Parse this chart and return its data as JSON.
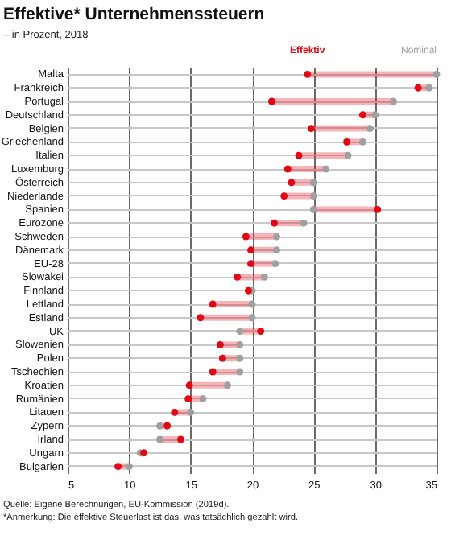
{
  "chart_data": {
    "type": "scatter",
    "title": "Effektive* Unternehmenssteuern",
    "subtitle": "– in Prozent, 2018",
    "categories": [
      "Malta",
      "Frankreich",
      "Portugal",
      "Deutschland",
      "Belgien",
      "Griechenland",
      "Italien",
      "Luxemburg",
      "Österreich",
      "Niederlande",
      "Spanien",
      "Eurozone",
      "Schweden",
      "Dänemark",
      "EU-28",
      "Slowakei",
      "Finnland",
      "Lettland",
      "Estland",
      "UK",
      "Slowenien",
      "Polen",
      "Tschechien",
      "Kroatien",
      "Rumänien",
      "Litauen",
      "Zypern",
      "Irland",
      "Ungarn",
      "Bulgarien"
    ],
    "series": [
      {
        "name": "Effektiv",
        "color": "#e30613",
        "values": [
          24.5,
          33.5,
          21.6,
          29.0,
          24.8,
          27.7,
          23.8,
          22.9,
          23.2,
          22.6,
          30.2,
          21.8,
          19.5,
          19.9,
          19.9,
          18.8,
          19.7,
          16.8,
          15.8,
          20.7,
          17.4,
          17.6,
          16.8,
          14.9,
          14.8,
          13.7,
          13.1,
          14.2,
          11.2,
          9.1
        ]
      },
      {
        "name": "Nominal",
        "color": "#a0a0a0",
        "values": [
          35,
          34.4,
          31.5,
          30,
          29.6,
          29,
          27.8,
          26,
          25,
          25,
          25,
          24.2,
          22,
          22,
          21.9,
          21,
          20,
          20,
          20,
          19,
          19,
          19,
          19,
          18,
          16,
          15,
          12.5,
          12.5,
          10.9,
          10
        ]
      }
    ],
    "orientation": "horizontal",
    "xlim": [
      5,
      35
    ],
    "xticks": [
      5,
      10,
      15,
      20,
      25,
      30,
      35
    ],
    "grid": true,
    "marker": "circle",
    "annotations": [
      "Quelle: Eigene Berechnungen, EU-Kommission (2019d).",
      "*Anmerkung: Die effektive Steuerlast ist das, was tatsächlich gezahlt wird."
    ]
  }
}
